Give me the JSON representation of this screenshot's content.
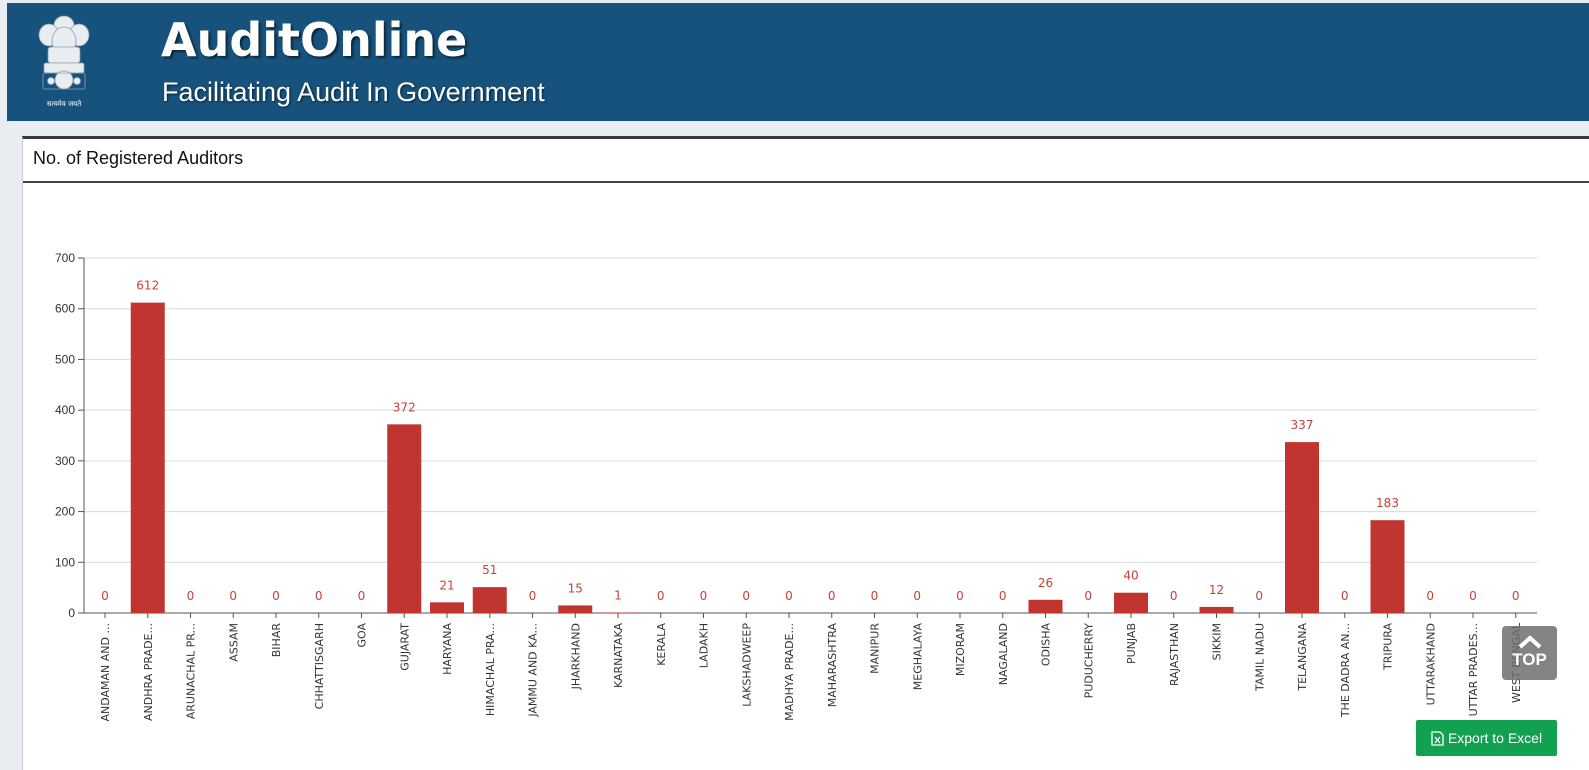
{
  "header": {
    "title": "AuditOnline",
    "subtitle": "Facilitating Audit In Government",
    "emblem_caption": "सत्यमेव जयते"
  },
  "panel": {
    "heading": "No. of Registered Auditors"
  },
  "buttons": {
    "top_label": "TOP",
    "export_label": "Export to Excel"
  },
  "colors": {
    "header_bg": "#17527d",
    "bar": "#c13531",
    "export_bg": "#12a150"
  },
  "chart_data": {
    "type": "bar",
    "title": "",
    "xlabel": "",
    "ylabel": "",
    "ylim": [
      0,
      700
    ],
    "yticks": [
      0,
      100,
      200,
      300,
      400,
      500,
      600,
      700
    ],
    "grid": true,
    "data_labels": true,
    "categories": [
      "ANDAMAN AND ...",
      "ANDHRA PRADE...",
      "ARUNACHAL PR...",
      "ASSAM",
      "BIHAR",
      "CHHATTISGARH",
      "GOA",
      "GUJARAT",
      "HARYANA",
      "HIMACHAL PRA...",
      "JAMMU AND KA...",
      "JHARKHAND",
      "KARNATAKA",
      "KERALA",
      "LADAKH",
      "LAKSHADWEEP",
      "MADHYA PRADE...",
      "MAHARASHTRA",
      "MANIPUR",
      "MEGHALAYA",
      "MIZORAM",
      "NAGALAND",
      "ODISHA",
      "PUDUCHERRY",
      "PUNJAB",
      "RAJASTHAN",
      "SIKKIM",
      "TAMIL NADU",
      "TELANGANA",
      "THE DADRA AN...",
      "TRIPURA",
      "UTTARAKHAND",
      "UTTAR PRADES...",
      "WEST BENGAL"
    ],
    "values": [
      0,
      612,
      0,
      0,
      0,
      0,
      0,
      372,
      21,
      51,
      0,
      15,
      1,
      0,
      0,
      0,
      0,
      0,
      0,
      0,
      0,
      0,
      26,
      0,
      40,
      0,
      12,
      0,
      337,
      0,
      183,
      0,
      0,
      0
    ]
  }
}
